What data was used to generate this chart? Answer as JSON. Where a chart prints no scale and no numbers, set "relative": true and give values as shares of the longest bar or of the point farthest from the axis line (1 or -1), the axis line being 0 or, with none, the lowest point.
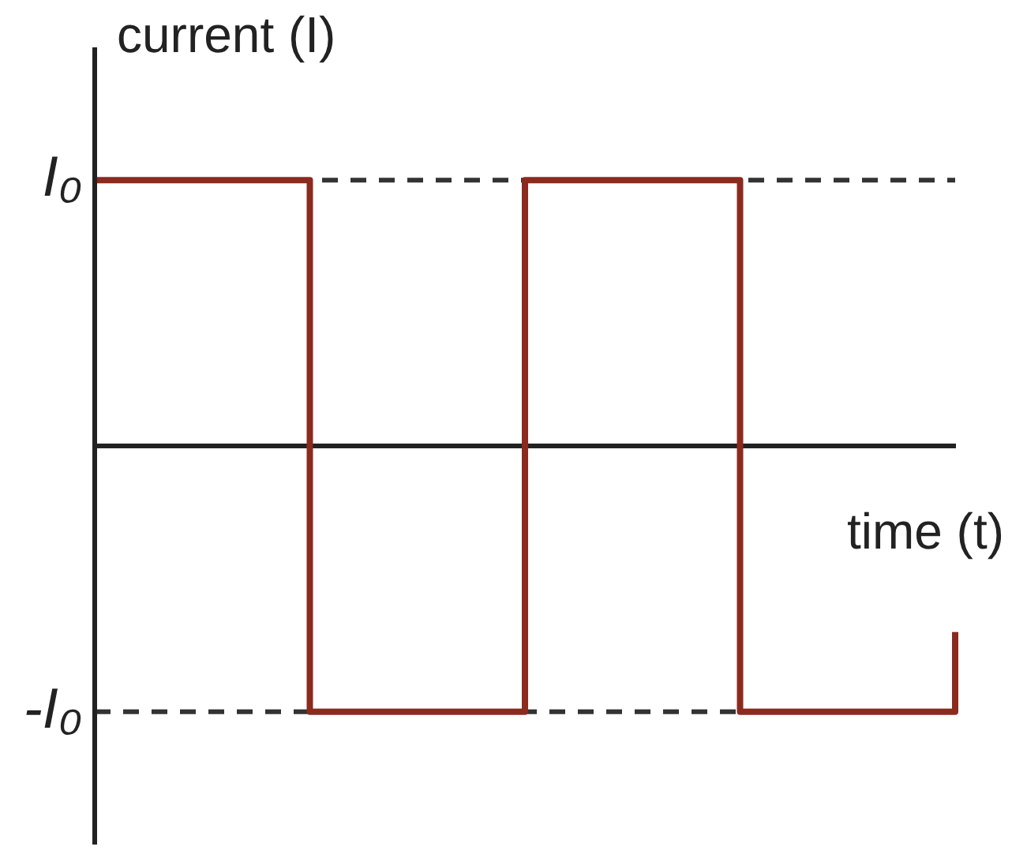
{
  "chart_data": {
    "type": "step",
    "xlabel": "time (t)",
    "ylabel": "current (I)",
    "categories": [
      null,
      null,
      null,
      null,
      null
    ],
    "series": [
      {
        "color": "#8b2a1e",
        "values": [
          1,
          -1,
          1,
          -1,
          -0.7
        ]
      }
    ],
    "relative": true,
    "ref_lines": [
      {
        "axis": "y",
        "value": 1,
        "label": "I₀",
        "color": "#333333",
        "line_style": "dashed"
      },
      {
        "axis": "y",
        "value": -1,
        "label": "-I₀",
        "color": "#333333",
        "line_style": "dashed"
      }
    ],
    "grid": false,
    "legend": false
  }
}
